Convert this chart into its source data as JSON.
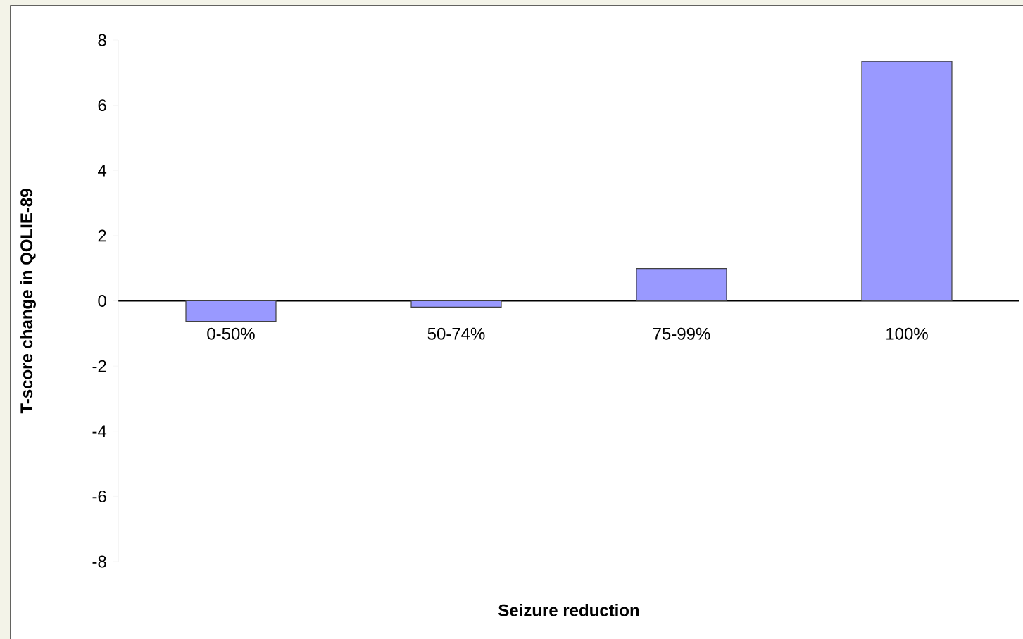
{
  "chart_data": {
    "type": "bar",
    "xlabel": "Seizure reduction",
    "ylabel": "T-score change in QOLIE-89",
    "categories": [
      "0-50%",
      "50-74%",
      "75-99%",
      "100%"
    ],
    "values": [
      -0.63,
      -0.19,
      0.99,
      7.35
    ],
    "color": "#9999ff",
    "ylim": [
      -8,
      8
    ],
    "yticks": [
      -8,
      -6,
      -4,
      -2,
      0,
      2,
      4,
      6,
      8
    ],
    "grid": false
  }
}
